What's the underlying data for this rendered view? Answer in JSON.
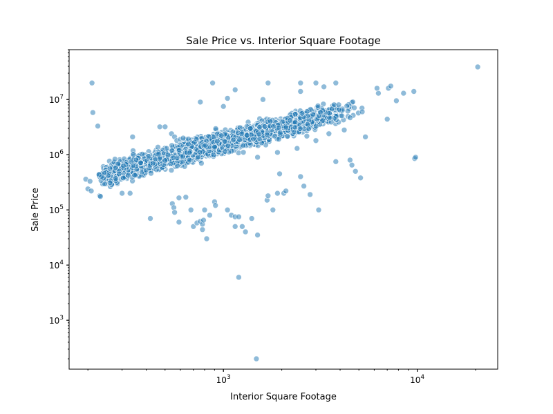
{
  "chart_data": {
    "type": "scatter",
    "title": "Sale Price vs. Interior Square Footage",
    "xlabel": "Interior Square Footage",
    "ylabel": "Sale Price",
    "xscale": "log",
    "yscale": "log",
    "xlim": [
      160,
      26000
    ],
    "ylim": [
      130,
      80000000
    ],
    "x_ticks": [
      {
        "value": 1000,
        "base": "10",
        "exp": "3"
      },
      {
        "value": 10000,
        "base": "10",
        "exp": "4"
      }
    ],
    "y_ticks": [
      {
        "value": 1000,
        "base": "10",
        "exp": "3"
      },
      {
        "value": 10000,
        "base": "10",
        "exp": "4"
      },
      {
        "value": 100000,
        "base": "10",
        "exp": "5"
      },
      {
        "value": 1000000,
        "base": "10",
        "exp": "6"
      },
      {
        "value": 10000000,
        "base": "10",
        "exp": "7"
      }
    ],
    "grid": false,
    "marker_color": "#1f77b4",
    "marker_alpha": 0.5,
    "point_count": 2500,
    "trend_log10_intercept": 3.37,
    "trend_log10_slope": 0.95,
    "points": [
      [
        210,
        20000000
      ],
      [
        212,
        5800000
      ],
      [
        225,
        3300000
      ],
      [
        195,
        360000
      ],
      [
        205,
        330000
      ],
      [
        200,
        240000
      ],
      [
        208,
        220000
      ],
      [
        230,
        180000
      ],
      [
        232,
        175000
      ],
      [
        235,
        400000
      ],
      [
        260,
        310000
      ],
      [
        290,
        450000
      ],
      [
        300,
        200000
      ],
      [
        330,
        200000
      ],
      [
        340,
        2100000
      ],
      [
        420,
        70000
      ],
      [
        470,
        3200000
      ],
      [
        500,
        3200000
      ],
      [
        510,
        1300000
      ],
      [
        540,
        2400000
      ],
      [
        560,
        2100000
      ],
      [
        575,
        1800000
      ],
      [
        600,
        1900000
      ],
      [
        620,
        2000000
      ],
      [
        590,
        60000
      ],
      [
        545,
        130000
      ],
      [
        555,
        110000
      ],
      [
        560,
        90000
      ],
      [
        590,
        165000
      ],
      [
        640,
        170000
      ],
      [
        680,
        100000
      ],
      [
        700,
        50000
      ],
      [
        730,
        58000
      ],
      [
        760,
        62000
      ],
      [
        780,
        44000
      ],
      [
        780,
        55000
      ],
      [
        790,
        65000
      ],
      [
        800,
        100000
      ],
      [
        820,
        30000
      ],
      [
        850,
        80000
      ],
      [
        900,
        140000
      ],
      [
        910,
        120000
      ],
      [
        880,
        20000000
      ],
      [
        760,
        9000000
      ],
      [
        1000,
        7500000
      ],
      [
        1050,
        10500000
      ],
      [
        1150,
        15000000
      ],
      [
        1050,
        100000
      ],
      [
        1100,
        80000
      ],
      [
        1150,
        75000
      ],
      [
        1150,
        50000
      ],
      [
        1200,
        75000
      ],
      [
        1250,
        50000
      ],
      [
        1300,
        40000
      ],
      [
        1200,
        6000
      ],
      [
        1400,
        70000
      ],
      [
        1500,
        35000
      ],
      [
        1480,
        200
      ],
      [
        1700,
        20000000
      ],
      [
        1600,
        10000000
      ],
      [
        1680,
        150000
      ],
      [
        1700,
        180000
      ],
      [
        1800,
        100000
      ],
      [
        1900,
        200000
      ],
      [
        1950,
        450000
      ],
      [
        2050,
        200000
      ],
      [
        2100,
        220000
      ],
      [
        2500,
        20000000
      ],
      [
        2500,
        14000000
      ],
      [
        3000,
        20000000
      ],
      [
        3300,
        17000000
      ],
      [
        3800,
        20000000
      ],
      [
        2500,
        400000
      ],
      [
        2600,
        270000
      ],
      [
        2800,
        190000
      ],
      [
        3100,
        100000
      ],
      [
        3800,
        750000
      ],
      [
        4500,
        800000
      ],
      [
        4600,
        650000
      ],
      [
        4800,
        500000
      ],
      [
        5100,
        380000
      ],
      [
        5400,
        2100000
      ],
      [
        7000,
        4400000
      ],
      [
        6300,
        13000000
      ],
      [
        6200,
        16000000
      ],
      [
        7100,
        16000000
      ],
      [
        7300,
        17500000
      ],
      [
        7800,
        9500000
      ],
      [
        8500,
        13000000
      ],
      [
        9600,
        14000000
      ],
      [
        9700,
        850000
      ],
      [
        9800,
        900000
      ],
      [
        20500,
        39000000
      ],
      [
        5200,
        6000000
      ],
      [
        4200,
        2800000
      ],
      [
        3500,
        2400000
      ],
      [
        3000,
        1800000
      ],
      [
        2400,
        1300000
      ],
      [
        1900,
        1100000
      ],
      [
        1500,
        900000
      ]
    ]
  }
}
